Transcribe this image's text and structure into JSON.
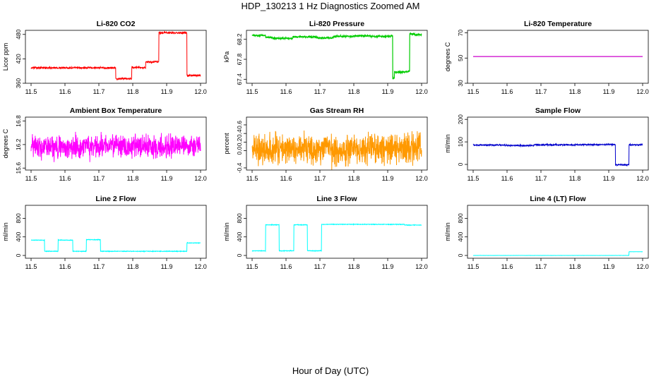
{
  "figure": {
    "title": "HDP_130213  1 Hz Diagnostics Zoomed AM",
    "xlabel": "Hour of Day (UTC)"
  },
  "chart_data": [
    {
      "type": "line",
      "title": "Li-820 CO2",
      "ylabel": "Licor ppm",
      "color": "#ff0000",
      "xlim": [
        11.5,
        12.0
      ],
      "ylim": [
        360,
        490
      ],
      "xticks": [
        "11.5",
        "11.6",
        "11.7",
        "11.8",
        "11.9",
        "12.0"
      ],
      "yticks": [
        360,
        420,
        480
      ],
      "ytick_labels": [
        "360",
        "420",
        "480"
      ],
      "noise": 1.5,
      "series": [
        {
          "steps": [
            [
              11.5,
              398
            ],
            [
              11.75,
              371
            ],
            [
              11.797,
              399
            ],
            [
              11.825,
              398
            ],
            [
              11.838,
              412
            ],
            [
              11.865,
              413
            ],
            [
              11.877,
              484
            ],
            [
              11.96,
              379
            ],
            [
              12.0,
              379
            ]
          ]
        }
      ]
    },
    {
      "type": "line",
      "title": "Li-820 Pressure",
      "ylabel": "kPa",
      "color": "#00cc00",
      "xlim": [
        11.5,
        12.0
      ],
      "ylim": [
        67.32,
        68.38
      ],
      "xticks": [
        "11.5",
        "11.6",
        "11.7",
        "11.8",
        "11.9",
        "12.0"
      ],
      "yticks": [
        67.4,
        67.8,
        68.2
      ],
      "ytick_labels": [
        "67.4",
        "67.8",
        "68.2"
      ],
      "noise": 0.01,
      "series": [
        {
          "steps": [
            [
              11.5,
              68.28
            ],
            [
              11.54,
              68.24
            ],
            [
              11.56,
              68.22
            ],
            [
              11.62,
              68.25
            ],
            [
              11.66,
              68.25
            ],
            [
              11.69,
              68.23
            ],
            [
              11.74,
              68.26
            ],
            [
              11.8,
              68.27
            ],
            [
              11.85,
              68.26
            ],
            [
              11.91,
              68.27
            ],
            [
              11.915,
              67.42
            ],
            [
              11.92,
              67.54
            ],
            [
              11.95,
              67.55
            ],
            [
              11.96,
              67.56
            ],
            [
              11.965,
              68.31
            ],
            [
              11.98,
              68.29
            ],
            [
              12.0,
              68.29
            ]
          ]
        }
      ]
    },
    {
      "type": "line",
      "title": "Li-820 Temperature",
      "ylabel": "degrees C",
      "color": "#cc00cc",
      "xlim": [
        11.5,
        12.0
      ],
      "ylim": [
        30,
        72
      ],
      "xticks": [
        "11.5",
        "11.6",
        "11.7",
        "11.8",
        "11.9",
        "12.0"
      ],
      "yticks": [
        30,
        50,
        70
      ],
      "ytick_labels": [
        "30",
        "50",
        "70"
      ],
      "noise": 0,
      "series": [
        {
          "steps": [
            [
              11.5,
              51.2
            ],
            [
              12.0,
              51.2
            ]
          ]
        }
      ]
    },
    {
      "type": "line",
      "title": "Ambient Box Temperature",
      "ylabel": "degrees C",
      "color": "#ff00ff",
      "xlim": [
        11.5,
        12.0
      ],
      "ylim": [
        15.55,
        16.9
      ],
      "xticks": [
        "11.5",
        "11.6",
        "11.7",
        "11.8",
        "11.9",
        "12.0"
      ],
      "yticks": [
        15.6,
        16.2,
        16.8
      ],
      "ytick_labels": [
        "15.6",
        "16.2",
        "16.8"
      ],
      "noise": 0.18,
      "series": [
        {
          "steps": [
            [
              11.5,
              16.15
            ],
            [
              12.0,
              16.15
            ]
          ]
        }
      ]
    },
    {
      "type": "line",
      "title": "Gas Stream RH",
      "ylabel": "percent",
      "color": "#ff9900",
      "xlim": [
        11.5,
        12.0
      ],
      "ylim": [
        -0.45,
        0.78
      ],
      "xticks": [
        "11.5",
        "11.6",
        "11.7",
        "11.8",
        "11.9",
        "12.0"
      ],
      "yticks": [
        -0.4,
        0.0,
        0.2,
        0.4,
        0.6
      ],
      "ytick_labels": [
        "-0.4",
        "0.0",
        "0.2",
        "0.4",
        "0.6"
      ],
      "noise": 0.22,
      "series": [
        {
          "steps": [
            [
              11.5,
              0.05
            ],
            [
              12.0,
              0.05
            ]
          ]
        }
      ]
    },
    {
      "type": "line",
      "title": "Sample Flow",
      "ylabel": "ml/min",
      "color": "#0000cc",
      "xlim": [
        11.5,
        12.0
      ],
      "ylim": [
        -25,
        210
      ],
      "xticks": [
        "11.5",
        "11.6",
        "11.7",
        "11.8",
        "11.9",
        "12.0"
      ],
      "yticks": [
        0,
        100,
        200
      ],
      "ytick_labels": [
        "0",
        "100",
        "200"
      ],
      "noise": 2,
      "series": [
        {
          "steps": [
            [
              11.5,
              86
            ],
            [
              11.6,
              84
            ],
            [
              11.68,
              87
            ],
            [
              11.8,
              88
            ],
            [
              11.92,
              -2
            ],
            [
              11.96,
              87
            ],
            [
              12.0,
              87
            ]
          ]
        }
      ]
    },
    {
      "type": "line",
      "title": "Line 2 Flow",
      "ylabel": "ml/min",
      "color": "#00ffff",
      "xlim": [
        11.5,
        12.0
      ],
      "ylim": [
        -60,
        1080
      ],
      "xticks": [
        "11.5",
        "11.6",
        "11.7",
        "11.8",
        "11.9",
        "12.0"
      ],
      "yticks": [
        0,
        400,
        800
      ],
      "ytick_labels": [
        "0",
        "400",
        "800"
      ],
      "noise": 4,
      "series": [
        {
          "steps": [
            [
              11.5,
              330
            ],
            [
              11.54,
              90
            ],
            [
              11.58,
              330
            ],
            [
              11.623,
              90
            ],
            [
              11.663,
              340
            ],
            [
              11.705,
              90
            ],
            [
              11.96,
              270
            ],
            [
              12.0,
              270
            ]
          ]
        }
      ]
    },
    {
      "type": "line",
      "title": "Line 3 Flow",
      "ylabel": "ml/min",
      "color": "#00ffff",
      "xlim": [
        11.5,
        12.0
      ],
      "ylim": [
        -60,
        1080
      ],
      "xticks": [
        "11.5",
        "11.6",
        "11.7",
        "11.8",
        "11.9",
        "12.0"
      ],
      "yticks": [
        0,
        400,
        800
      ],
      "ytick_labels": [
        "0",
        "400",
        "800"
      ],
      "noise": 4,
      "series": [
        {
          "steps": [
            [
              11.5,
              100
            ],
            [
              11.54,
              660
            ],
            [
              11.58,
              100
            ],
            [
              11.623,
              660
            ],
            [
              11.663,
              100
            ],
            [
              11.705,
              670
            ],
            [
              11.95,
              655
            ],
            [
              12.0,
              655
            ]
          ]
        }
      ]
    },
    {
      "type": "line",
      "title": "Line 4 (LT) Flow",
      "ylabel": "ml/min",
      "color": "#00ffff",
      "xlim": [
        11.5,
        12.0
      ],
      "ylim": [
        -60,
        1080
      ],
      "xticks": [
        "11.5",
        "11.6",
        "11.7",
        "11.8",
        "11.9",
        "12.0"
      ],
      "yticks": [
        0,
        400,
        800
      ],
      "ytick_labels": [
        "0",
        "400",
        "800"
      ],
      "noise": 1,
      "series": [
        {
          "steps": [
            [
              11.5,
              0
            ],
            [
              11.96,
              80
            ],
            [
              12.0,
              80
            ]
          ]
        }
      ]
    }
  ]
}
